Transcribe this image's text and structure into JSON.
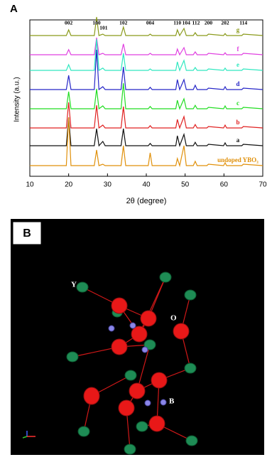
{
  "chart_data": {
    "type": "line",
    "panel_label": "A",
    "xlabel": "2θ (degree)",
    "ylabel": "Intensity (a.u.)",
    "xlim": [
      10,
      70
    ],
    "xticks": [
      10,
      20,
      30,
      40,
      50,
      60,
      70
    ],
    "ylim": [
      0,
      20
    ],
    "x": [
      10,
      19.4,
      20,
      20.6,
      26.6,
      27.2,
      27.8,
      28.8,
      29.4,
      33.5,
      34.1,
      34.7,
      40.5,
      41,
      41.5,
      47.6,
      48,
      48.6,
      49.7,
      50.3,
      52.1,
      52.6,
      53.1,
      55.6,
      56,
      59.9,
      60.3,
      60.7,
      64.6,
      65,
      70
    ],
    "series": [
      {
        "name": "g",
        "color": "#8a9a1b",
        "values": [
          0,
          0,
          2,
          0,
          0,
          6.5,
          0,
          0.5,
          0,
          0,
          3,
          0,
          0,
          0.5,
          0,
          0,
          2,
          0,
          2.5,
          0,
          0,
          1,
          0,
          0,
          0.5,
          0,
          0.7,
          0,
          0,
          0.5,
          0
        ]
      },
      {
        "name": "f",
        "color": "#e040e0",
        "values": [
          0,
          0,
          1.8,
          0,
          0,
          6,
          0,
          0.5,
          0,
          0,
          3.8,
          0,
          0,
          0.5,
          0,
          0,
          2,
          0,
          2.5,
          0,
          0,
          1,
          0,
          0,
          0.5,
          0,
          0.7,
          0,
          0,
          0.5,
          0
        ]
      },
      {
        "name": "e",
        "color": "#30e8c0",
        "values": [
          0,
          0,
          2,
          0,
          0,
          11,
          0,
          0.8,
          0,
          0,
          6,
          0,
          0,
          0.5,
          0,
          0,
          3,
          0,
          3.5,
          0,
          0,
          1,
          0,
          0,
          0.5,
          0,
          0.8,
          0,
          0,
          0.5,
          0
        ]
      },
      {
        "name": "d",
        "color": "#2626c8",
        "values": [
          0,
          0,
          5,
          0,
          0,
          14,
          0,
          1,
          0,
          0,
          8,
          0,
          0,
          0.8,
          0,
          0,
          3.5,
          0,
          3.5,
          0,
          0,
          1.5,
          0,
          0,
          0.5,
          0,
          1,
          0,
          0,
          0.5,
          0
        ]
      },
      {
        "name": "c",
        "color": "#22dd22",
        "values": [
          0,
          0,
          6,
          0,
          0,
          7,
          0,
          1,
          0,
          0,
          9,
          0,
          0,
          0.8,
          0,
          0,
          3,
          0,
          3.5,
          0,
          0,
          1.2,
          0,
          0,
          0.5,
          0,
          1,
          0,
          0,
          0.5,
          0
        ]
      },
      {
        "name": "b",
        "color": "#e02020",
        "values": [
          0,
          0,
          9,
          0,
          0,
          8,
          0,
          1,
          0,
          0,
          7.5,
          0,
          0,
          0.8,
          0,
          0,
          3,
          0,
          4,
          0,
          0,
          1.2,
          0,
          0,
          0.5,
          0,
          1,
          0,
          0,
          0.5,
          0
        ]
      },
      {
        "name": "a",
        "color": "#111111",
        "values": [
          0,
          0,
          10,
          0,
          0,
          6,
          0,
          1.5,
          0,
          0,
          6,
          0,
          0,
          0.8,
          0,
          0,
          3.5,
          0,
          4,
          0,
          0,
          1.2,
          0,
          0,
          0.5,
          0,
          1,
          0,
          0,
          0.5,
          0
        ]
      },
      {
        "name": "undoped YBO₃",
        "color": "#e0900a",
        "values": [
          0,
          0,
          17,
          0,
          0,
          5.5,
          0,
          0.5,
          0,
          0,
          7,
          0,
          0,
          4.5,
          0,
          0,
          2.5,
          0,
          7,
          0,
          0,
          1.5,
          0,
          0,
          0.5,
          0,
          1,
          0,
          0,
          0.5,
          0
        ]
      }
    ],
    "annotations": [
      {
        "text": "002",
        "x": 20
      },
      {
        "text": "100",
        "x": 27.2
      },
      {
        "text": "101",
        "x": 29
      },
      {
        "text": "102",
        "x": 34.1
      },
      {
        "text": "004",
        "x": 41
      },
      {
        "text": "110",
        "x": 48
      },
      {
        "text": "104",
        "x": 50.3
      },
      {
        "text": "112",
        "x": 52.8
      },
      {
        "text": "200",
        "x": 56
      },
      {
        "text": "202",
        "x": 60.3
      },
      {
        "text": "114",
        "x": 65
      }
    ]
  },
  "panel_b": {
    "label": "B",
    "atom_labels": [
      "Y",
      "O",
      "B"
    ]
  }
}
